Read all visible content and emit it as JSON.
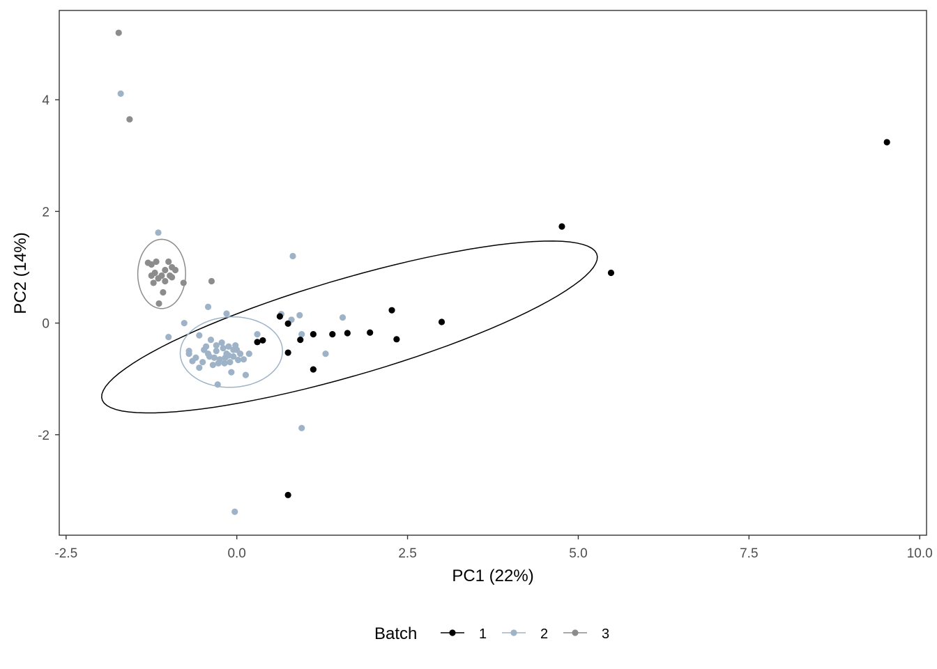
{
  "chart_data": {
    "type": "scatter",
    "title": "",
    "xlabel": "PC1 (22%)",
    "ylabel": "PC2 (14%)",
    "xlim": [
      -2.6,
      10.1
    ],
    "ylim": [
      -3.8,
      5.6
    ],
    "xticks": [
      -2.5,
      0.0,
      2.5,
      5.0,
      7.5,
      10.0
    ],
    "xtick_labels": [
      "-2.5",
      "0.0",
      "2.5",
      "5.0",
      "7.5",
      "10.0"
    ],
    "yticks": [
      -2,
      0,
      2,
      4
    ],
    "ytick_labels": [
      "-2",
      "0",
      "2",
      "4"
    ],
    "grid": false,
    "legend": {
      "title": "Batch",
      "position": "bottom"
    },
    "series": [
      {
        "name": "1",
        "color": "#000000",
        "points": [
          [
            9.52,
            3.24
          ],
          [
            4.76,
            1.73
          ],
          [
            5.48,
            0.9
          ],
          [
            3.0,
            0.02
          ],
          [
            2.27,
            0.23
          ],
          [
            2.34,
            -0.29
          ],
          [
            1.95,
            -0.17
          ],
          [
            1.62,
            -0.18
          ],
          [
            1.4,
            -0.2
          ],
          [
            1.12,
            -0.2
          ],
          [
            0.93,
            -0.3
          ],
          [
            1.12,
            -0.83
          ],
          [
            0.75,
            -0.01
          ],
          [
            0.63,
            0.12
          ],
          [
            0.75,
            -0.53
          ],
          [
            0.38,
            -0.31
          ],
          [
            0.3,
            -0.34
          ],
          [
            0.75,
            -3.08
          ]
        ],
        "ellipse": {
          "cx": 1.65,
          "cy": -0.07,
          "rx": 3.85,
          "ry": 0.85,
          "angle_deg": 20
        }
      },
      {
        "name": "2",
        "color": "#9eb3c7",
        "points": [
          [
            -1.7,
            4.11
          ],
          [
            -1.15,
            1.62
          ],
          [
            0.82,
            1.2
          ],
          [
            -0.42,
            0.29
          ],
          [
            -0.15,
            0.17
          ],
          [
            -0.77,
            0.0
          ],
          [
            0.65,
            0.16
          ],
          [
            0.92,
            0.14
          ],
          [
            0.8,
            0.06
          ],
          [
            1.55,
            0.1
          ],
          [
            0.95,
            -0.2
          ],
          [
            -1.0,
            -0.25
          ],
          [
            0.3,
            -0.2
          ],
          [
            1.3,
            -0.55
          ],
          [
            -0.55,
            -0.22
          ],
          [
            0.13,
            -0.93
          ],
          [
            -0.28,
            -1.1
          ],
          [
            -0.7,
            -0.55
          ],
          [
            -0.65,
            -0.68
          ],
          [
            -0.45,
            -0.42
          ],
          [
            -0.4,
            -0.6
          ],
          [
            -0.35,
            -0.75
          ],
          [
            -0.3,
            -0.5
          ],
          [
            -0.25,
            -0.65
          ],
          [
            -0.2,
            -0.45
          ],
          [
            -0.15,
            -0.55
          ],
          [
            -0.1,
            -0.7
          ],
          [
            -0.05,
            -0.6
          ],
          [
            0.0,
            -0.48
          ],
          [
            0.05,
            -0.55
          ],
          [
            0.1,
            -0.65
          ],
          [
            0.18,
            -0.55
          ],
          [
            -0.48,
            -0.48
          ],
          [
            -0.38,
            -0.3
          ],
          [
            -0.3,
            -0.4
          ],
          [
            -0.22,
            -0.35
          ],
          [
            -0.12,
            -0.42
          ],
          [
            -0.02,
            -0.4
          ],
          [
            -0.18,
            -0.72
          ],
          [
            -0.08,
            -0.88
          ],
          [
            -0.55,
            -0.8
          ],
          [
            -0.6,
            -0.62
          ],
          [
            -0.5,
            -0.7
          ],
          [
            -0.42,
            -0.55
          ],
          [
            -0.33,
            -0.62
          ],
          [
            -0.27,
            -0.72
          ],
          [
            -0.17,
            -0.62
          ],
          [
            -0.12,
            -0.58
          ],
          [
            -0.05,
            -0.48
          ],
          [
            0.02,
            -0.66
          ],
          [
            -0.7,
            -0.5
          ],
          [
            0.95,
            -1.88
          ],
          [
            -0.03,
            -3.38
          ]
        ],
        "ellipse": {
          "cx": -0.08,
          "cy": -0.52,
          "rx": 0.75,
          "ry": 0.63,
          "angle_deg": 5
        }
      },
      {
        "name": "3",
        "color": "#8c8c8c",
        "points": [
          [
            -1.73,
            5.2
          ],
          [
            -1.57,
            3.65
          ],
          [
            -1.3,
            1.08
          ],
          [
            -1.25,
            1.05
          ],
          [
            -1.2,
            0.9
          ],
          [
            -1.15,
            0.8
          ],
          [
            -1.1,
            0.85
          ],
          [
            -1.05,
            0.75
          ],
          [
            -1.0,
            1.1
          ],
          [
            -0.95,
            1.0
          ],
          [
            -0.9,
            0.95
          ],
          [
            -0.98,
            0.85
          ],
          [
            -1.05,
            0.95
          ],
          [
            -1.18,
            1.1
          ],
          [
            -1.22,
            0.72
          ],
          [
            -1.14,
            0.35
          ],
          [
            -1.08,
            0.55
          ],
          [
            -0.78,
            0.72
          ],
          [
            -0.37,
            0.75
          ],
          [
            -0.95,
            0.82
          ],
          [
            -1.25,
            0.85
          ]
        ],
        "ellipse": {
          "cx": -1.1,
          "cy": 0.88,
          "rx": 0.35,
          "ry": 0.62,
          "angle_deg": 0
        }
      }
    ]
  }
}
